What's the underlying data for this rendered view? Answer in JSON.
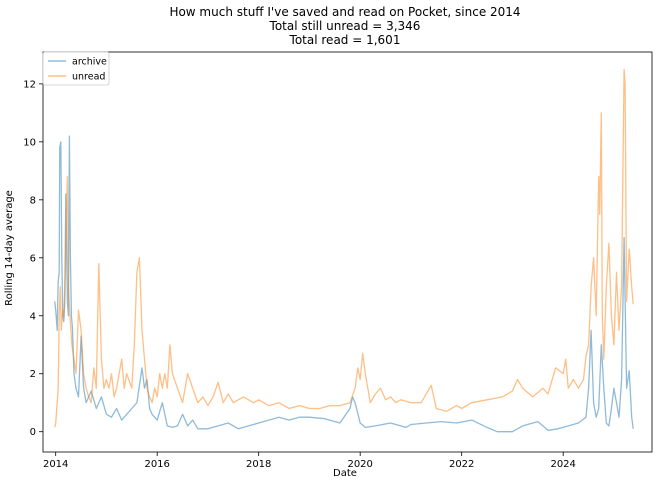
{
  "chart_data": {
    "type": "line",
    "title_lines": [
      "How much stuff I've saved and read on Pocket, since 2014",
      "Total still unread = 3,346",
      "Total read = 1,601"
    ],
    "xlabel": "Date",
    "ylabel": "Rolling 14-day average",
    "xlim": [
      2013.75,
      2025.75
    ],
    "ylim": [
      -0.7,
      13.1
    ],
    "x_ticks": [
      2014,
      2016,
      2018,
      2020,
      2022,
      2024
    ],
    "x_tick_labels": [
      "2014",
      "2016",
      "2018",
      "2020",
      "2022",
      "2024"
    ],
    "y_ticks": [
      0,
      2,
      4,
      6,
      8,
      10,
      12
    ],
    "y_tick_labels": [
      "0",
      "2",
      "4",
      "6",
      "8",
      "10",
      "12"
    ],
    "grid": false,
    "legend_position": "upper-left",
    "series": [
      {
        "name": "archive",
        "color": "#1f77b4",
        "opacity": 0.5,
        "points": [
          [
            2013.98,
            4.5
          ],
          [
            2014.0,
            4.2
          ],
          [
            2014.03,
            3.5
          ],
          [
            2014.05,
            5.2
          ],
          [
            2014.07,
            5.5
          ],
          [
            2014.08,
            9.8
          ],
          [
            2014.1,
            10.0
          ],
          [
            2014.12,
            6.0
          ],
          [
            2014.14,
            4.0
          ],
          [
            2014.16,
            3.8
          ],
          [
            2014.18,
            4.5
          ],
          [
            2014.2,
            8.2
          ],
          [
            2014.23,
            4.5
          ],
          [
            2014.25,
            4.0
          ],
          [
            2014.27,
            10.2
          ],
          [
            2014.29,
            6.0
          ],
          [
            2014.31,
            4.0
          ],
          [
            2014.33,
            3.6
          ],
          [
            2014.36,
            2.0
          ],
          [
            2014.4,
            1.5
          ],
          [
            2014.45,
            1.2
          ],
          [
            2014.5,
            3.3
          ],
          [
            2014.55,
            1.5
          ],
          [
            2014.6,
            1.0
          ],
          [
            2014.7,
            1.4
          ],
          [
            2014.8,
            0.8
          ],
          [
            2014.9,
            1.2
          ],
          [
            2015.0,
            0.6
          ],
          [
            2015.1,
            0.5
          ],
          [
            2015.2,
            0.8
          ],
          [
            2015.3,
            0.4
          ],
          [
            2015.4,
            0.6
          ],
          [
            2015.5,
            0.8
          ],
          [
            2015.6,
            1.0
          ],
          [
            2015.7,
            2.2
          ],
          [
            2015.75,
            1.5
          ],
          [
            2015.8,
            1.8
          ],
          [
            2015.85,
            0.8
          ],
          [
            2015.9,
            0.6
          ],
          [
            2016.0,
            0.4
          ],
          [
            2016.1,
            1.0
          ],
          [
            2016.2,
            0.2
          ],
          [
            2016.3,
            0.15
          ],
          [
            2016.4,
            0.2
          ],
          [
            2016.5,
            0.6
          ],
          [
            2016.6,
            0.2
          ],
          [
            2016.7,
            0.4
          ],
          [
            2016.8,
            0.1
          ],
          [
            2017.0,
            0.1
          ],
          [
            2017.2,
            0.2
          ],
          [
            2017.4,
            0.3
          ],
          [
            2017.6,
            0.1
          ],
          [
            2017.8,
            0.2
          ],
          [
            2018.0,
            0.3
          ],
          [
            2018.2,
            0.4
          ],
          [
            2018.4,
            0.5
          ],
          [
            2018.6,
            0.4
          ],
          [
            2018.8,
            0.5
          ],
          [
            2019.0,
            0.5
          ],
          [
            2019.3,
            0.45
          ],
          [
            2019.6,
            0.3
          ],
          [
            2019.8,
            0.8
          ],
          [
            2019.85,
            1.2
          ],
          [
            2019.9,
            1.0
          ],
          [
            2020.0,
            0.3
          ],
          [
            2020.1,
            0.15
          ],
          [
            2020.3,
            0.2
          ],
          [
            2020.6,
            0.3
          ],
          [
            2020.9,
            0.15
          ],
          [
            2021.0,
            0.25
          ],
          [
            2021.3,
            0.3
          ],
          [
            2021.6,
            0.35
          ],
          [
            2021.9,
            0.3
          ],
          [
            2022.2,
            0.4
          ],
          [
            2022.5,
            0.15
          ],
          [
            2022.7,
            0.0
          ],
          [
            2023.0,
            0.0
          ],
          [
            2023.2,
            0.2
          ],
          [
            2023.5,
            0.35
          ],
          [
            2023.7,
            0.05
          ],
          [
            2023.9,
            0.1
          ],
          [
            2024.1,
            0.2
          ],
          [
            2024.3,
            0.3
          ],
          [
            2024.45,
            0.5
          ],
          [
            2024.5,
            1.5
          ],
          [
            2024.55,
            3.5
          ],
          [
            2024.6,
            1.0
          ],
          [
            2024.65,
            0.5
          ],
          [
            2024.7,
            0.8
          ],
          [
            2024.75,
            3.0
          ],
          [
            2024.8,
            1.5
          ],
          [
            2024.85,
            0.3
          ],
          [
            2024.9,
            0.2
          ],
          [
            2024.95,
            0.8
          ],
          [
            2025.0,
            1.5
          ],
          [
            2025.05,
            1.0
          ],
          [
            2025.1,
            0.5
          ],
          [
            2025.15,
            1.8
          ],
          [
            2025.2,
            6.7
          ],
          [
            2025.25,
            1.5
          ],
          [
            2025.3,
            2.1
          ],
          [
            2025.35,
            0.5
          ],
          [
            2025.38,
            0.1
          ]
        ]
      },
      {
        "name": "unread",
        "color": "#ff7f0e",
        "opacity": 0.5,
        "points": [
          [
            2013.98,
            0.15
          ],
          [
            2014.0,
            0.3
          ],
          [
            2014.03,
            1.0
          ],
          [
            2014.05,
            1.5
          ],
          [
            2014.07,
            4.0
          ],
          [
            2014.09,
            5.0
          ],
          [
            2014.11,
            3.5
          ],
          [
            2014.14,
            4.2
          ],
          [
            2014.16,
            4.0
          ],
          [
            2014.19,
            5.5
          ],
          [
            2014.21,
            7.5
          ],
          [
            2014.23,
            8.8
          ],
          [
            2014.25,
            5.0
          ],
          [
            2014.28,
            4.0
          ],
          [
            2014.32,
            3.0
          ],
          [
            2014.36,
            2.5
          ],
          [
            2014.4,
            2.0
          ],
          [
            2014.45,
            4.2
          ],
          [
            2014.5,
            3.5
          ],
          [
            2014.55,
            2.0
          ],
          [
            2014.6,
            1.5
          ],
          [
            2014.65,
            1.2
          ],
          [
            2014.7,
            1.0
          ],
          [
            2014.75,
            2.2
          ],
          [
            2014.8,
            1.5
          ],
          [
            2014.85,
            5.8
          ],
          [
            2014.9,
            2.5
          ],
          [
            2014.95,
            1.5
          ],
          [
            2015.0,
            1.8
          ],
          [
            2015.05,
            1.5
          ],
          [
            2015.1,
            2.0
          ],
          [
            2015.15,
            1.2
          ],
          [
            2015.2,
            1.5
          ],
          [
            2015.3,
            2.5
          ],
          [
            2015.35,
            1.5
          ],
          [
            2015.4,
            2.0
          ],
          [
            2015.5,
            1.5
          ],
          [
            2015.55,
            3.0
          ],
          [
            2015.6,
            5.5
          ],
          [
            2015.65,
            6.0
          ],
          [
            2015.7,
            3.5
          ],
          [
            2015.75,
            2.5
          ],
          [
            2015.8,
            1.5
          ],
          [
            2015.85,
            1.2
          ],
          [
            2015.9,
            1.0
          ],
          [
            2015.95,
            1.5
          ],
          [
            2016.0,
            1.2
          ],
          [
            2016.05,
            2.0
          ],
          [
            2016.1,
            1.5
          ],
          [
            2016.15,
            2.0
          ],
          [
            2016.2,
            1.5
          ],
          [
            2016.25,
            3.0
          ],
          [
            2016.3,
            2.0
          ],
          [
            2016.4,
            1.5
          ],
          [
            2016.5,
            1.0
          ],
          [
            2016.6,
            2.0
          ],
          [
            2016.7,
            1.5
          ],
          [
            2016.8,
            1.0
          ],
          [
            2016.9,
            1.2
          ],
          [
            2017.0,
            0.9
          ],
          [
            2017.1,
            1.2
          ],
          [
            2017.2,
            1.7
          ],
          [
            2017.3,
            1.0
          ],
          [
            2017.4,
            1.3
          ],
          [
            2017.5,
            1.0
          ],
          [
            2017.7,
            1.2
          ],
          [
            2017.9,
            1.0
          ],
          [
            2018.0,
            1.1
          ],
          [
            2018.2,
            0.9
          ],
          [
            2018.4,
            1.0
          ],
          [
            2018.6,
            0.8
          ],
          [
            2018.8,
            0.9
          ],
          [
            2019.0,
            0.8
          ],
          [
            2019.2,
            0.8
          ],
          [
            2019.4,
            0.9
          ],
          [
            2019.6,
            0.9
          ],
          [
            2019.8,
            1.0
          ],
          [
            2019.9,
            1.5
          ],
          [
            2019.95,
            2.2
          ],
          [
            2020.0,
            1.8
          ],
          [
            2020.05,
            2.7
          ],
          [
            2020.1,
            2.0
          ],
          [
            2020.15,
            1.5
          ],
          [
            2020.2,
            1.0
          ],
          [
            2020.3,
            1.3
          ],
          [
            2020.4,
            1.5
          ],
          [
            2020.5,
            1.1
          ],
          [
            2020.6,
            1.2
          ],
          [
            2020.7,
            1.0
          ],
          [
            2020.8,
            1.1
          ],
          [
            2021.0,
            1.0
          ],
          [
            2021.2,
            1.0
          ],
          [
            2021.4,
            1.6
          ],
          [
            2021.5,
            0.8
          ],
          [
            2021.7,
            0.7
          ],
          [
            2021.9,
            0.9
          ],
          [
            2022.0,
            0.8
          ],
          [
            2022.2,
            1.0
          ],
          [
            2022.5,
            1.1
          ],
          [
            2022.8,
            1.2
          ],
          [
            2023.0,
            1.4
          ],
          [
            2023.1,
            1.8
          ],
          [
            2023.2,
            1.5
          ],
          [
            2023.4,
            1.2
          ],
          [
            2023.6,
            1.5
          ],
          [
            2023.7,
            1.3
          ],
          [
            2023.85,
            2.2
          ],
          [
            2024.0,
            2.0
          ],
          [
            2024.05,
            2.5
          ],
          [
            2024.1,
            1.5
          ],
          [
            2024.2,
            1.8
          ],
          [
            2024.3,
            1.5
          ],
          [
            2024.4,
            1.8
          ],
          [
            2024.45,
            2.6
          ],
          [
            2024.5,
            3.0
          ],
          [
            2024.55,
            5.0
          ],
          [
            2024.6,
            6.0
          ],
          [
            2024.65,
            4.0
          ],
          [
            2024.7,
            8.8
          ],
          [
            2024.72,
            7.5
          ],
          [
            2024.75,
            11.0
          ],
          [
            2024.77,
            4.0
          ],
          [
            2024.8,
            2.5
          ],
          [
            2024.85,
            5.0
          ],
          [
            2024.9,
            6.5
          ],
          [
            2024.95,
            4.0
          ],
          [
            2025.0,
            3.0
          ],
          [
            2025.05,
            5.5
          ],
          [
            2025.1,
            3.5
          ],
          [
            2025.15,
            5.0
          ],
          [
            2025.2,
            12.5
          ],
          [
            2025.22,
            12.0
          ],
          [
            2025.25,
            4.5
          ],
          [
            2025.3,
            6.3
          ],
          [
            2025.35,
            5.0
          ],
          [
            2025.38,
            4.4
          ]
        ]
      }
    ]
  }
}
